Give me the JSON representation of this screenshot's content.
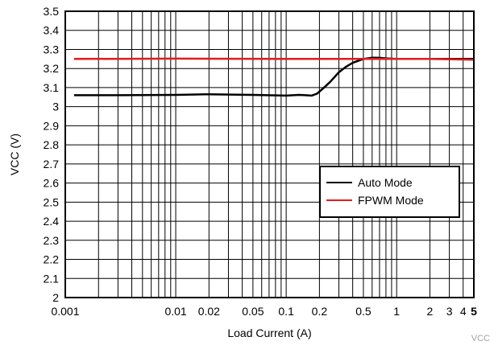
{
  "chart_data": {
    "type": "line",
    "title": "",
    "xlabel": "Load Current (A)",
    "ylabel": "VCC (V)",
    "xscale": "log",
    "xlim": [
      0.001,
      5
    ],
    "ylim": [
      2,
      3.5
    ],
    "grid": true,
    "legend_position": "right",
    "x_ticks": [
      {
        "value": 0.001,
        "label": "0.001"
      },
      {
        "value": 0.01,
        "label": "0.01"
      },
      {
        "value": 0.02,
        "label": "0.02"
      },
      {
        "value": 0.05,
        "label": "0.05"
      },
      {
        "value": 0.1,
        "label": "0.1"
      },
      {
        "value": 0.2,
        "label": "0.2"
      },
      {
        "value": 0.5,
        "label": "0.5"
      },
      {
        "value": 1,
        "label": "1"
      },
      {
        "value": 2,
        "label": "2"
      },
      {
        "value": 3,
        "label": "3"
      },
      {
        "value": 4,
        "label": "4"
      },
      {
        "value": 5,
        "label": "5"
      }
    ],
    "y_ticks": [
      {
        "value": 2,
        "label": "2"
      },
      {
        "value": 2.1,
        "label": "2.1"
      },
      {
        "value": 2.2,
        "label": "2.2"
      },
      {
        "value": 2.3,
        "label": "2.3"
      },
      {
        "value": 2.4,
        "label": "2.4"
      },
      {
        "value": 2.5,
        "label": "2.5"
      },
      {
        "value": 2.6,
        "label": "2.6"
      },
      {
        "value": 2.7,
        "label": "2.7"
      },
      {
        "value": 2.8,
        "label": "2.8"
      },
      {
        "value": 2.9,
        "label": "2.9"
      },
      {
        "value": 3,
        "label": "3"
      },
      {
        "value": 3.1,
        "label": "3.1"
      },
      {
        "value": 3.2,
        "label": "3.2"
      },
      {
        "value": 3.3,
        "label": "3.3"
      },
      {
        "value": 3.4,
        "label": "3.4"
      },
      {
        "value": 3.5,
        "label": "3.5"
      }
    ],
    "series": [
      {
        "name": "Auto Mode",
        "color": "#000000",
        "x": [
          0.0012,
          0.003,
          0.01,
          0.02,
          0.05,
          0.1,
          0.13,
          0.15,
          0.17,
          0.19,
          0.22,
          0.25,
          0.3,
          0.35,
          0.4,
          0.5,
          0.6,
          0.7,
          0.8,
          1,
          2,
          5
        ],
        "y": [
          3.06,
          3.06,
          3.062,
          3.065,
          3.062,
          3.058,
          3.062,
          3.06,
          3.058,
          3.068,
          3.1,
          3.13,
          3.18,
          3.21,
          3.23,
          3.25,
          3.257,
          3.256,
          3.253,
          3.25,
          3.25,
          3.25
        ]
      },
      {
        "name": "FPWM Mode",
        "color": "#e41a1c",
        "x": [
          0.0012,
          0.01,
          0.1,
          0.5,
          1,
          2,
          5
        ],
        "y": [
          3.25,
          3.252,
          3.25,
          3.25,
          3.25,
          3.25,
          3.246
        ]
      }
    ]
  },
  "watermark": "VCC"
}
